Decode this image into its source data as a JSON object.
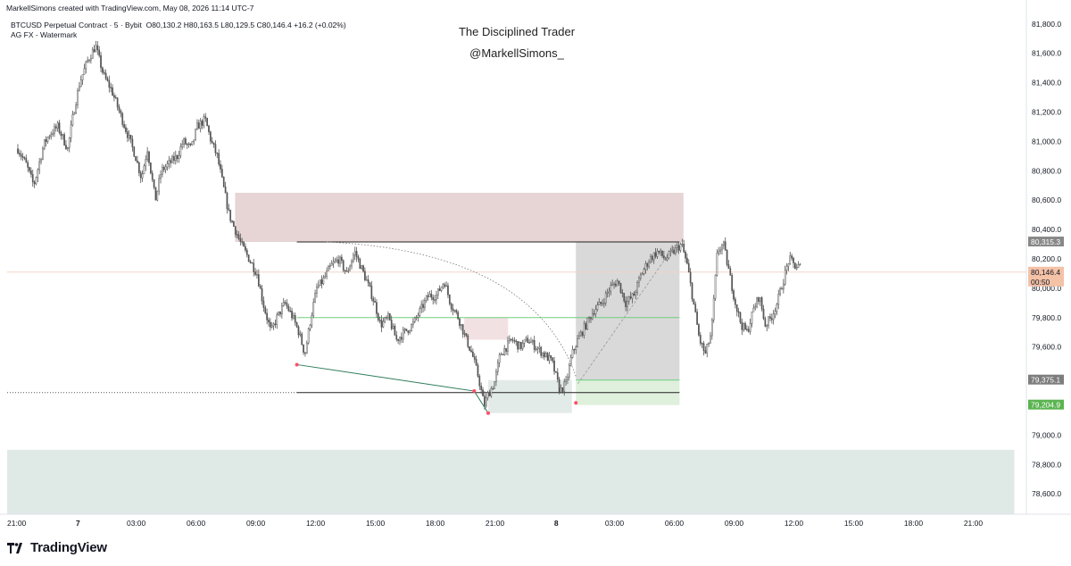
{
  "header": {
    "text": "MarkellSimons created with TradingView.com, May 08, 2026 11:14 UTC-7"
  },
  "legend": {
    "title": "BTCUSD Perpetual Contract · 5 · Bybit",
    "ohlc": "O80,130.2  H80,163.5  L80,129.5  C80,146.4  +16.2 (+0.02%)",
    "indicator": "AG FX - Watermark"
  },
  "watermark": {
    "line1": "The Disciplined Trader",
    "line2": "@MarkellSimons_"
  },
  "footer": {
    "brand": "TradingView"
  },
  "colors": {
    "candle": "#555555",
    "supply_zone": "#e7d5d6",
    "demand_zone": "#e3ebe8",
    "position_box": "#d9d9d9",
    "target_box": "#dff0dc",
    "green_line": "#6ecf7f",
    "last_price_tag": "#f4c2a7",
    "stop_tag": "#5bb451",
    "gray_tag": "#7d7d7d"
  },
  "chart_data": {
    "type": "candlestick",
    "symbol": "BTCUSD Perpetual Contract",
    "interval": "5",
    "exchange": "Bybit",
    "ylim": [
      78450,
      81900
    ],
    "y_ticks": [
      78600.0,
      78800.0,
      79000.0,
      79200.0,
      79400.0,
      79600.0,
      79800.0,
      80000.0,
      80200.0,
      80400.0,
      80600.0,
      80800.0,
      81000.0,
      81200.0,
      81400.0,
      81600.0,
      81800.0
    ],
    "y_tick_labels": [
      "78,600.0",
      "78,800.0",
      "79,000.0",
      "",
      "",
      "79,600.0",
      "79,800.0",
      "80,000.0",
      "80,200.0",
      "80,400.0",
      "80,600.0",
      "80,800.0",
      "81,000.0",
      "81,200.0",
      "81,400.0",
      "81,600.0",
      "81,800.0"
    ],
    "x_axis_note": "hours since 21:00 on the 6th",
    "x_ticks": [
      0,
      3,
      6,
      9,
      12,
      15,
      18,
      21,
      24,
      27,
      30,
      33,
      36,
      39,
      42,
      45,
      48
    ],
    "x_tick_labels": [
      "21:00",
      "7",
      "03:00",
      "06:00",
      "09:00",
      "12:00",
      "15:00",
      "18:00",
      "21:00",
      "8",
      "03:00",
      "06:00",
      "09:00",
      "12:00",
      "15:00",
      "18:00",
      "21:00"
    ],
    "price_tags": [
      {
        "label": "80,315.3",
        "value": 80315.3,
        "kind": "gray-dark"
      },
      {
        "label": "80,146.4",
        "sublabel": "00:50",
        "value": 80110,
        "kind": "last-price"
      },
      {
        "label": "79,375.1",
        "value": 79375.1,
        "kind": "gray"
      },
      {
        "label": "79,204.9",
        "value": 79204.9,
        "kind": "green"
      }
    ],
    "price_path": [
      [
        0.0,
        80950
      ],
      [
        0.4,
        80850
      ],
      [
        0.8,
        80700
      ],
      [
        1.3,
        80980
      ],
      [
        1.6,
        81050
      ],
      [
        2.0,
        81100
      ],
      [
        2.5,
        80950
      ],
      [
        2.8,
        81200
      ],
      [
        3.1,
        81400
      ],
      [
        3.5,
        81550
      ],
      [
        3.9,
        81650
      ],
      [
        4.3,
        81450
      ],
      [
        4.7,
        81350
      ],
      [
        5.1,
        81200
      ],
      [
        5.5,
        81050
      ],
      [
        5.9,
        80900
      ],
      [
        6.2,
        80750
      ],
      [
        6.5,
        80950
      ],
      [
        6.9,
        80600
      ],
      [
        7.2,
        80800
      ],
      [
        7.6,
        80850
      ],
      [
        8.0,
        80900
      ],
      [
        8.3,
        81000
      ],
      [
        8.7,
        80950
      ],
      [
        9.0,
        81100
      ],
      [
        9.4,
        81150
      ],
      [
        9.7,
        81000
      ],
      [
        10.0,
        80900
      ],
      [
        10.3,
        80700
      ],
      [
        10.6,
        80500
      ],
      [
        10.9,
        80400
      ],
      [
        11.2,
        80300
      ],
      [
        11.6,
        80200
      ],
      [
        12.0,
        80100
      ],
      [
        12.3,
        79900
      ],
      [
        12.7,
        79700
      ],
      [
        13.0,
        79800
      ],
      [
        13.4,
        79900
      ],
      [
        13.8,
        79800
      ],
      [
        14.1,
        79700
      ],
      [
        14.4,
        79550
      ],
      [
        14.7,
        79800
      ],
      [
        15.0,
        80000
      ],
      [
        15.3,
        80050
      ],
      [
        15.7,
        80150
      ],
      [
        16.1,
        80200
      ],
      [
        16.5,
        80100
      ],
      [
        16.9,
        80250
      ],
      [
        17.2,
        80150
      ],
      [
        17.5,
        80050
      ],
      [
        17.9,
        79900
      ],
      [
        18.2,
        79750
      ],
      [
        18.6,
        79800
      ],
      [
        19.0,
        79650
      ],
      [
        19.4,
        79700
      ],
      [
        19.8,
        79750
      ],
      [
        20.2,
        79850
      ],
      [
        20.6,
        79950
      ],
      [
        21.0,
        79950
      ],
      [
        21.4,
        80050
      ],
      [
        21.7,
        79900
      ],
      [
        22.1,
        79800
      ],
      [
        22.5,
        79650
      ],
      [
        22.8,
        79550
      ],
      [
        23.1,
        79400
      ],
      [
        23.4,
        79200
      ],
      [
        23.6,
        79280
      ],
      [
        23.9,
        79350
      ],
      [
        24.2,
        79550
      ],
      [
        24.5,
        79600
      ],
      [
        24.8,
        79650
      ],
      [
        25.2,
        79600
      ],
      [
        25.6,
        79650
      ],
      [
        26.0,
        79600
      ],
      [
        26.4,
        79550
      ],
      [
        26.8,
        79500
      ],
      [
        27.2,
        79300
      ],
      [
        27.5,
        79350
      ],
      [
        27.8,
        79550
      ],
      [
        28.1,
        79650
      ],
      [
        28.5,
        79750
      ],
      [
        28.9,
        79850
      ],
      [
        29.3,
        79900
      ],
      [
        29.7,
        80000
      ],
      [
        30.1,
        80050
      ],
      [
        30.5,
        79900
      ],
      [
        30.9,
        79950
      ],
      [
        31.3,
        80100
      ],
      [
        31.7,
        80200
      ],
      [
        32.1,
        80250
      ],
      [
        32.5,
        80200
      ],
      [
        32.9,
        80250
      ],
      [
        33.3,
        80300
      ],
      [
        33.6,
        80150
      ],
      [
        33.9,
        79900
      ],
      [
        34.2,
        79650
      ],
      [
        34.5,
        79550
      ],
      [
        34.8,
        79700
      ],
      [
        35.1,
        80250
      ],
      [
        35.4,
        80300
      ],
      [
        35.7,
        80100
      ],
      [
        36.0,
        79900
      ],
      [
        36.3,
        79750
      ],
      [
        36.6,
        79700
      ],
      [
        36.9,
        79850
      ],
      [
        37.2,
        79950
      ],
      [
        37.5,
        79750
      ],
      [
        37.8,
        79800
      ],
      [
        38.1,
        79900
      ],
      [
        38.4,
        80050
      ],
      [
        38.7,
        80200
      ],
      [
        39.0,
        80150
      ],
      [
        39.3,
        80146.4
      ]
    ],
    "zones": [
      {
        "name": "supply-zone",
        "x0": 10.9,
        "x1": 33.4,
        "y0": 80315.3,
        "y1": 80650
      },
      {
        "name": "small-supply-zone",
        "x0": 22.4,
        "x1": 24.6,
        "y0": 79650,
        "y1": 79800
      },
      {
        "name": "demand-zone",
        "x0": 23.6,
        "x1": 27.8,
        "y0": 79150,
        "y1": 79375.1
      },
      {
        "name": "position-box",
        "x0": 28.0,
        "x1": 33.2,
        "y0": 79375.1,
        "y1": 80315.3
      },
      {
        "name": "target-box",
        "x0": 28.0,
        "x1": 33.2,
        "y0": 79204.9,
        "y1": 79375.1
      },
      {
        "name": "bottom-zone",
        "x0": -1.0,
        "x1": 50.0,
        "y0": 78450,
        "y1": 78900
      }
    ],
    "lines": [
      {
        "name": "top-level-line",
        "x0": 14.0,
        "x1": 33.2,
        "y": 80315.3,
        "style": "solid"
      },
      {
        "name": "green-level-line",
        "x0": 14.0,
        "x1": 33.2,
        "y": 79800,
        "style": "green"
      },
      {
        "name": "low-level-line",
        "x0": 14.0,
        "x1": 33.2,
        "y": 79290,
        "style": "solid"
      },
      {
        "name": "dotted-low-line",
        "x0": -1.0,
        "x1": 14.0,
        "y": 79290,
        "style": "dotted"
      },
      {
        "name": "entry-line",
        "x0": 28.0,
        "x1": 33.2,
        "y": 79375.1,
        "style": "green"
      }
    ],
    "trend_lines": [
      {
        "name": "falling-trendline",
        "points": [
          [
            14.0,
            79480
          ],
          [
            22.9,
            79300
          ],
          [
            23.6,
            79150
          ]
        ]
      }
    ],
    "swing_points": [
      [
        14.0,
        79480
      ],
      [
        22.9,
        79300
      ],
      [
        23.6,
        79150
      ],
      [
        28.0,
        79220
      ]
    ]
  }
}
